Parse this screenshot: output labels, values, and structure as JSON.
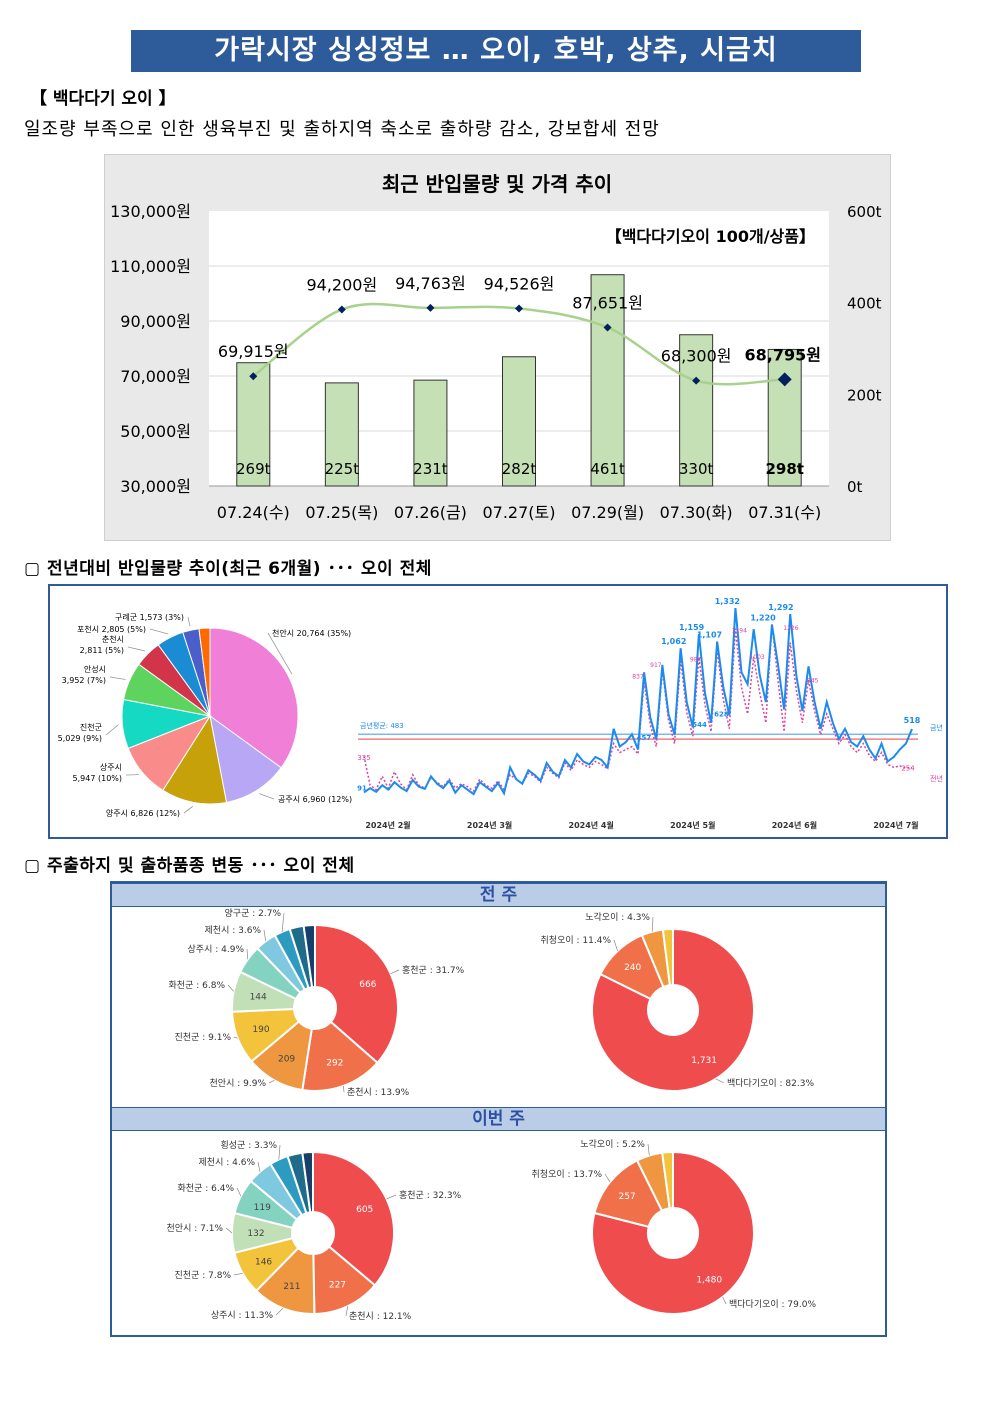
{
  "header": {
    "title": "가락시장 싱싱정보 … 오이, 호박, 상추, 시금치",
    "section": "【 백다다기 오이 】",
    "summary": "일조량 부족으로 인한 생육부진 및 출하지역 축소로 출하량 감소, 강보합세 전망"
  },
  "sections": {
    "s2": "▢ 전년대비 반입물량 추이(최근 6개월) ･･･ 오이 전체",
    "s3": "▢ 주출하지 및 출하품종 변동 ･･･ 오이 전체",
    "prev_week": "전 주",
    "this_week": "이번 주"
  },
  "chart_data": [
    {
      "type": "bar+line",
      "title": "최근 반입물량 및 가격 추이",
      "annotation": "【백다다기오이 100개/상품】",
      "categories": [
        "07.24(수)",
        "07.25(목)",
        "07.26(금)",
        "07.27(토)",
        "07.29(월)",
        "07.30(화)",
        "07.31(수)"
      ],
      "volume": [
        269,
        225,
        231,
        282,
        461,
        330,
        298
      ],
      "volume_labels": [
        "269t",
        "225t",
        "231t",
        "282t",
        "461t",
        "330t",
        "298t"
      ],
      "price": [
        69915,
        94200,
        94763,
        94526,
        87651,
        68300,
        68795
      ],
      "price_labels": [
        "69,915원",
        "94,200원",
        "94,763원",
        "94,526원",
        "87,651원",
        "68,300원",
        "68,795원"
      ],
      "left_ticks": [
        "130,000원",
        "110,000원",
        "90,000원",
        "70,000원",
        "50,000원",
        "30,000원"
      ],
      "left_range": [
        30000,
        130000
      ],
      "right_ticks": [
        "600t",
        "400t",
        "200t",
        "0t"
      ],
      "right_range": [
        0,
        600
      ],
      "bar_color": "#c5e0b4",
      "line_color": "#a9d18e"
    },
    {
      "type": "pie",
      "slices": [
        {
          "label": "천안시 20,764 (35%)",
          "value": 35,
          "color": "#f07fd8"
        },
        {
          "label": "공주시 6,960 (12%)",
          "value": 12,
          "color": "#b7a7f5"
        },
        {
          "label": "양주시 6,826 (12%)",
          "value": 12,
          "color": "#c6a109"
        },
        {
          "label": "상주시 5,947 (10%)",
          "value": 10,
          "color": "#f98b8b"
        },
        {
          "label": "진천군 5,029 (9%)",
          "value": 9,
          "color": "#15d9c3"
        },
        {
          "label": "안성시 3,952 (7%)",
          "value": 7,
          "color": "#5ed35e"
        },
        {
          "label": "춘천시 2,811 (5%)",
          "value": 5,
          "color": "#d2344a"
        },
        {
          "label": "포천시 2,805 (5%)",
          "value": 5,
          "color": "#1a8cd4"
        },
        {
          "label": "구례군 1,573 (3%)",
          "value": 3,
          "color": "#4a5fc9"
        },
        {
          "label": "",
          "value": 2,
          "color": "#ff6a00"
        }
      ]
    },
    {
      "type": "line",
      "x_labels": [
        "2024년 2월",
        "2024년 3월",
        "2024년 4월",
        "2024년 5월",
        "2024년 6월",
        "2024년 7월"
      ],
      "series": [
        {
          "name": "금년",
          "color": "#1a8cf0",
          "values": [
            91,
            120,
            95,
            140,
            110,
            160,
            125,
            100,
            175,
            130,
            115,
            200,
            150,
            120,
            170,
            90,
            140,
            110,
            80,
            160,
            130,
            100,
            155,
            85,
            260,
            180,
            150,
            240,
            210,
            170,
            290,
            230,
            200,
            310,
            260,
            350,
            300,
            280,
            330,
            310,
            260,
            520,
            400,
            430,
            483,
            380,
            900,
            600,
            450,
            950,
            620,
            480,
            1062,
            700,
            530,
            1159,
            760,
            560,
            1107,
            800,
            610,
            1332,
            900,
            820,
            1190,
            880,
            700,
            1220,
            950,
            650,
            1292,
            880,
            640,
            940,
            700,
            520,
            700,
            560,
            450,
            520,
            430,
            400,
            470,
            380,
            320,
            420,
            300,
            330,
            380,
            420,
            518
          ]
        },
        {
          "name": "전년",
          "color": "#e040a0",
          "values": [
            335,
            140,
            110,
            200,
            120,
            230,
            150,
            110,
            210,
            140,
            120,
            190,
            160,
            130,
            180,
            120,
            150,
            130,
            100,
            180,
            140,
            120,
            170,
            110,
            210,
            180,
            150,
            220,
            200,
            160,
            260,
            220,
            190,
            290,
            240,
            310,
            280,
            260,
            300,
            280,
            250,
            420,
            360,
            380,
            400,
            350,
            837,
            550,
            400,
            917,
            580,
            420,
            987,
            630,
            470,
            1000,
            680,
            500,
            1050,
            720,
            520,
            1194,
            800,
            620,
            1003,
            760,
            560,
            1226,
            840,
            500,
            1100,
            780,
            560,
            845,
            640,
            480,
            620,
            520,
            420,
            480,
            400,
            360,
            420,
            340,
            300,
            360,
            280,
            260,
            270,
            254,
            260
          ]
        }
      ],
      "annotations": [
        "1,332",
        "1,292",
        "1,220",
        "1,159",
        "1,107",
        "1,062",
        "518",
        "91",
        "837",
        "917",
        "987",
        "1194",
        "1003",
        "1226",
        "845",
        "254",
        "335",
        "457",
        "544",
        "628"
      ],
      "avg_label": "금년평균: 483",
      "avg_current": 483,
      "avg_previous": 450,
      "legend": [
        "금년",
        "전년"
      ]
    },
    {
      "type": "donut",
      "week": "전 주",
      "slices": [
        {
          "label": "홍천군 : 31.7%",
          "value": 666,
          "data_label": "666",
          "color": "#ef4d4d"
        },
        {
          "label": "춘천시 : 13.9%",
          "value": 292,
          "data_label": "292",
          "color": "#f0704a"
        },
        {
          "label": "천안시 : 9.9%",
          "value": 209,
          "data_label": "209",
          "color": "#ef9640"
        },
        {
          "label": "진천군 : 9.1%",
          "value": 190,
          "data_label": "190",
          "color": "#f3c33c"
        },
        {
          "label": "화천군 : 6.8%",
          "value": 144,
          "data_label": "144",
          "color": "#c2e0b7"
        },
        {
          "label": "상주시 : 4.9%",
          "value": 103,
          "data_label": "",
          "color": "#84d3c1"
        },
        {
          "label": "제천시 : 3.6%",
          "value": 76,
          "data_label": "",
          "color": "#7ec8e0"
        },
        {
          "label": "양구군 : 2.7%",
          "value": 57,
          "data_label": "",
          "color": "#2d9bc0"
        },
        {
          "label": "",
          "value": 50,
          "data_label": "",
          "color": "#1f6b8a"
        },
        {
          "label": "",
          "value": 40,
          "data_label": "",
          "color": "#173f6c"
        }
      ]
    },
    {
      "type": "donut",
      "week": "전 주",
      "slices": [
        {
          "label": "백다다기오이 : 82.3%",
          "value": 1731,
          "data_label": "1,731",
          "color": "#ef4d4d"
        },
        {
          "label": "취청오이 : 11.4%",
          "value": 240,
          "data_label": "240",
          "color": "#f0704a"
        },
        {
          "label": "노각오이 : 4.3%",
          "value": 90,
          "data_label": "",
          "color": "#ef9640"
        },
        {
          "label": "",
          "value": 42,
          "data_label": "",
          "color": "#f3c33c"
        }
      ]
    },
    {
      "type": "donut",
      "week": "이번 주",
      "slices": [
        {
          "label": "홍천군 : 32.3%",
          "value": 605,
          "data_label": "605",
          "color": "#ef4d4d"
        },
        {
          "label": "춘천시 : 12.1%",
          "value": 227,
          "data_label": "227",
          "color": "#f0704a"
        },
        {
          "label": "상주시 : 11.3%",
          "value": 211,
          "data_label": "211",
          "color": "#ef9640"
        },
        {
          "label": "진천군 : 7.8%",
          "value": 146,
          "data_label": "146",
          "color": "#f3c33c"
        },
        {
          "label": "천안시 : 7.1%",
          "value": 132,
          "data_label": "132",
          "color": "#c2e0b7"
        },
        {
          "label": "화천군 : 6.4%",
          "value": 119,
          "data_label": "119",
          "color": "#84d3c1"
        },
        {
          "label": "제천시 : 4.6%",
          "value": 86,
          "data_label": "",
          "color": "#7ec8e0"
        },
        {
          "label": "횡성군 : 3.3%",
          "value": 62,
          "data_label": "",
          "color": "#2d9bc0"
        },
        {
          "label": "",
          "value": 50,
          "data_label": "",
          "color": "#1f6b8a"
        },
        {
          "label": "",
          "value": 35,
          "data_label": "",
          "color": "#173f6c"
        }
      ]
    },
    {
      "type": "donut",
      "week": "이번 주",
      "slices": [
        {
          "label": "백다다기오이 : 79.0%",
          "value": 1480,
          "data_label": "1,480",
          "color": "#ef4d4d"
        },
        {
          "label": "취청오이 : 13.7%",
          "value": 257,
          "data_label": "257",
          "color": "#f0704a"
        },
        {
          "label": "노각오이 : 5.2%",
          "value": 97,
          "data_label": "",
          "color": "#ef9640"
        },
        {
          "label": "",
          "value": 40,
          "data_label": "",
          "color": "#f3c33c"
        }
      ]
    }
  ]
}
